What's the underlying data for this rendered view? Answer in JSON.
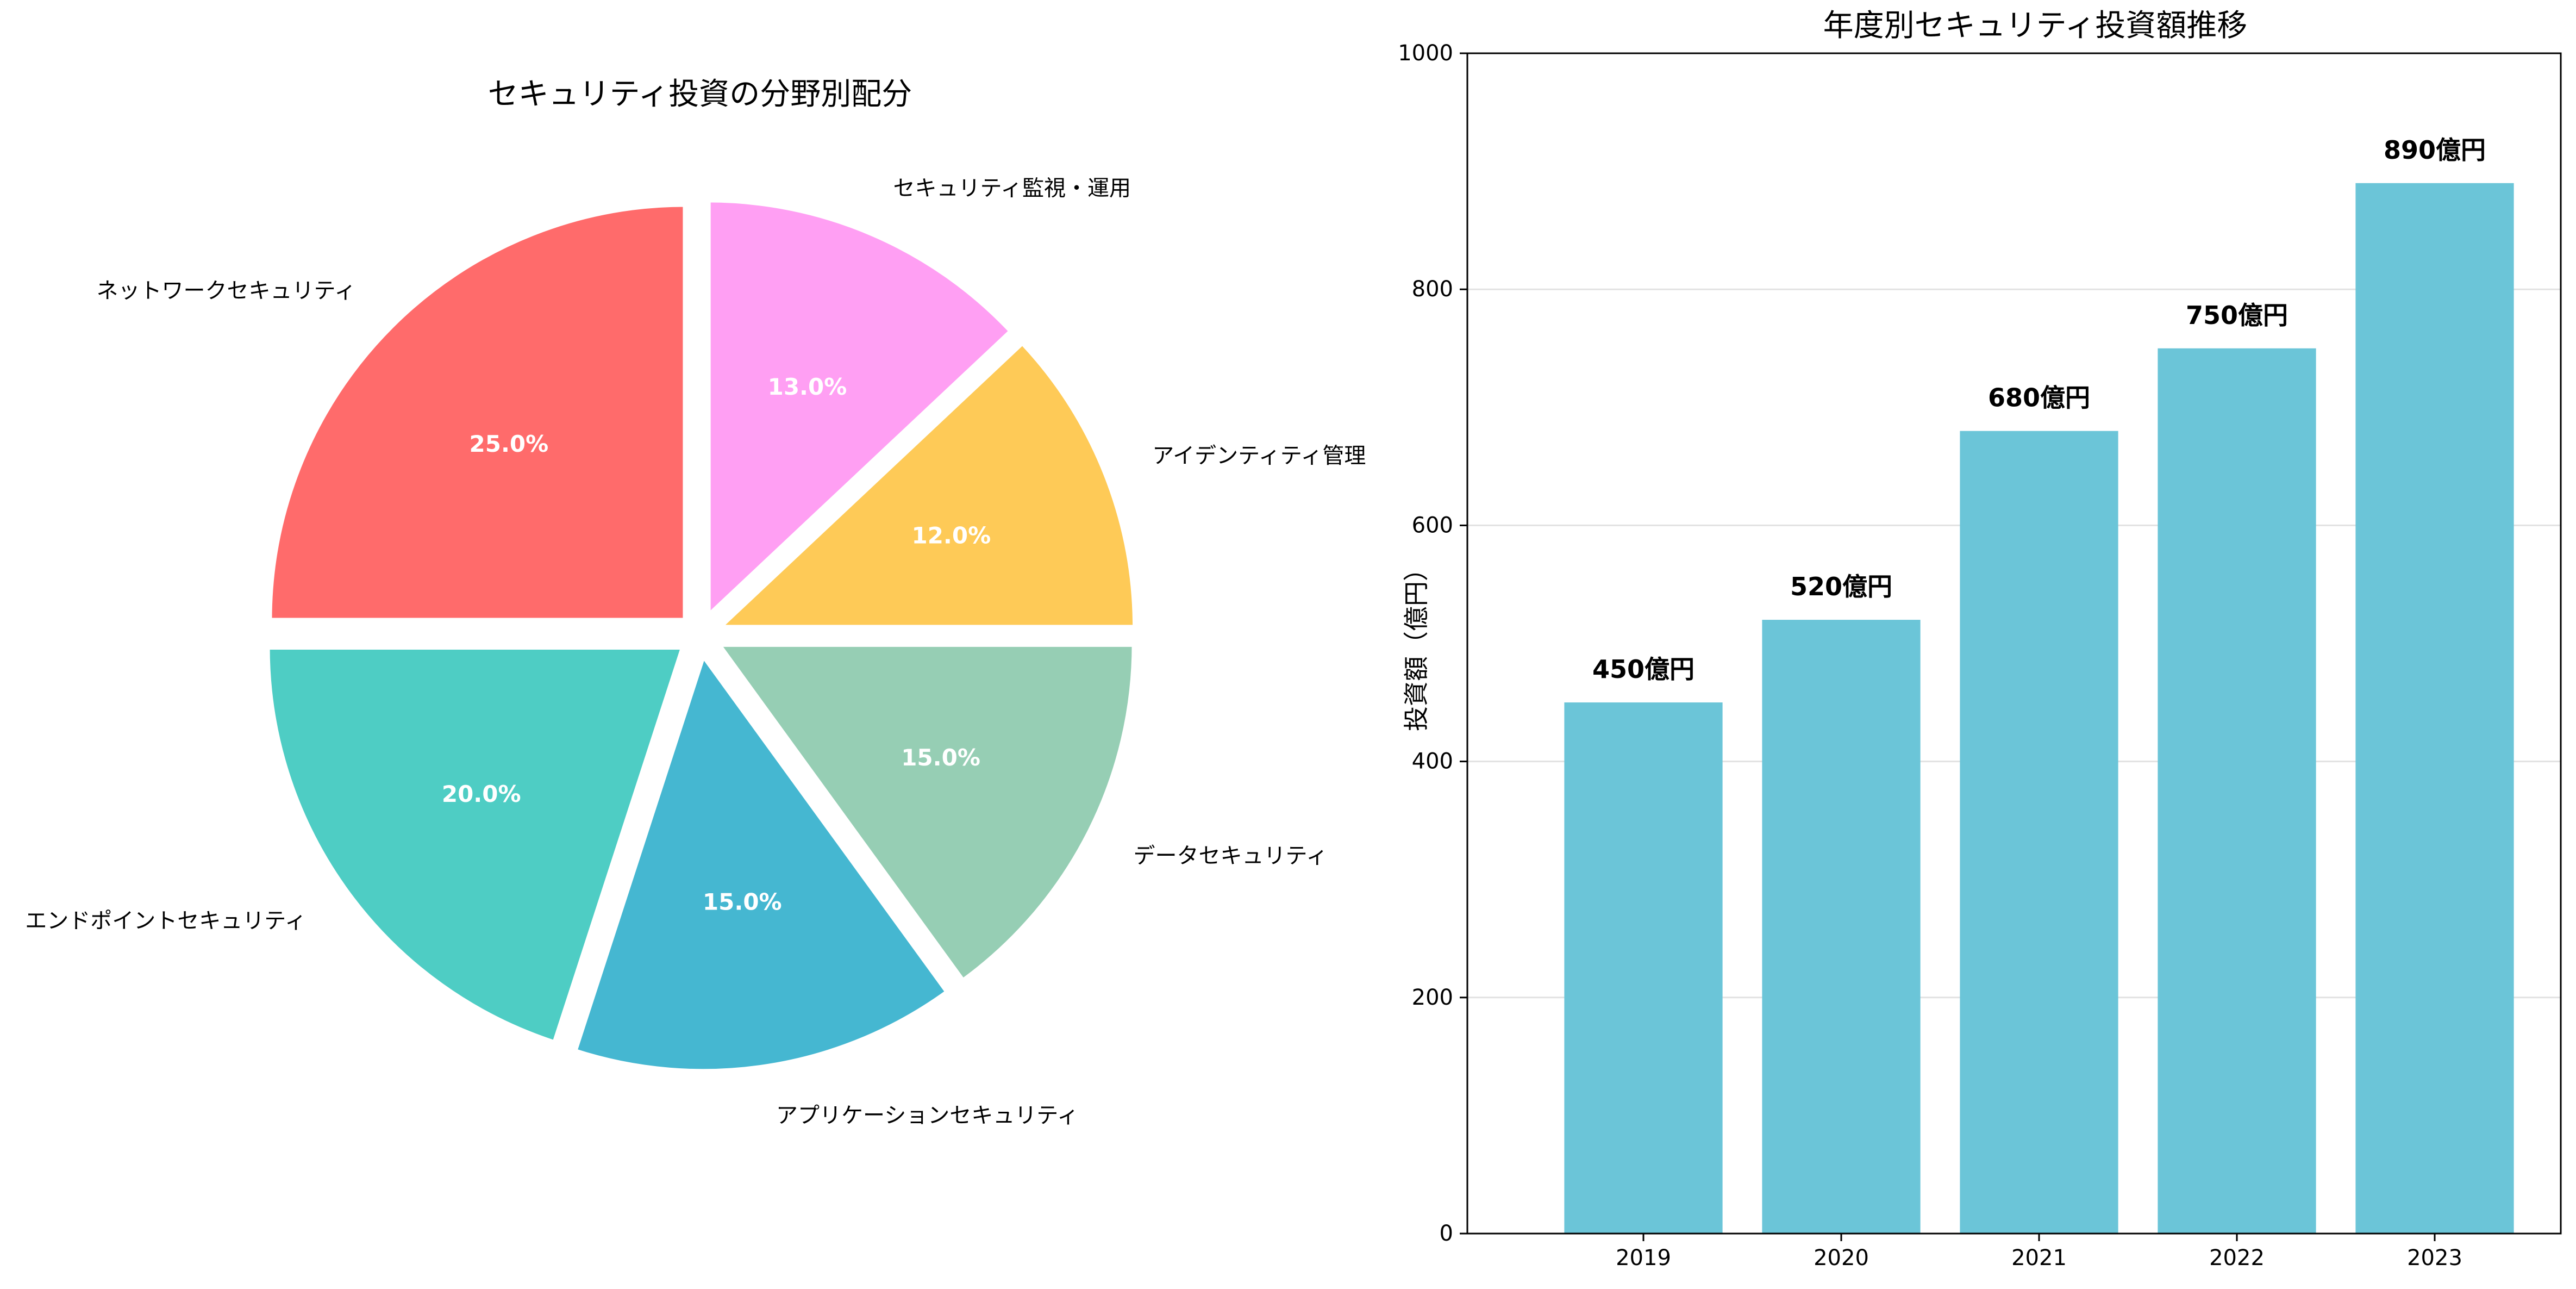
{
  "chart_data": [
    {
      "type": "pie",
      "title": "セキュリティ投資の分野別配分",
      "labels": [
        "ネットワークセキュリティ",
        "エンドポイントセキュリティ",
        "アプリケーションセキュリティ",
        "データセキュリティ",
        "アイデンティティ管理",
        "セキュリティ監視・運用"
      ],
      "values": [
        25,
        20,
        15,
        15,
        12,
        13
      ],
      "value_labels": [
        "25.0%",
        "20.0%",
        "15.0%",
        "15.0%",
        "12.0%",
        "13.0%"
      ],
      "colors": [
        "#FF6B6B",
        "#4ECDC4",
        "#45B7D1",
        "#96CEB4",
        "#FECA57",
        "#FF9FF3"
      ],
      "start_angle_deg": 90,
      "direction": "counterclockwise",
      "exploded": true
    },
    {
      "type": "bar",
      "title": "年度別セキュリティ投資額推移",
      "categories": [
        "2019",
        "2020",
        "2021",
        "2022",
        "2023"
      ],
      "values": [
        450,
        520,
        680,
        750,
        890
      ],
      "data_labels": [
        "450億円",
        "520億円",
        "680億円",
        "750億円",
        "890億円"
      ],
      "xlabel": "",
      "ylabel": "投資額（億円）",
      "ylim": [
        0,
        1000
      ],
      "yticks": [
        "0",
        "200",
        "400",
        "600",
        "800",
        "1000"
      ],
      "grid": "y",
      "bar_color": "#6BC5D8"
    }
  ]
}
